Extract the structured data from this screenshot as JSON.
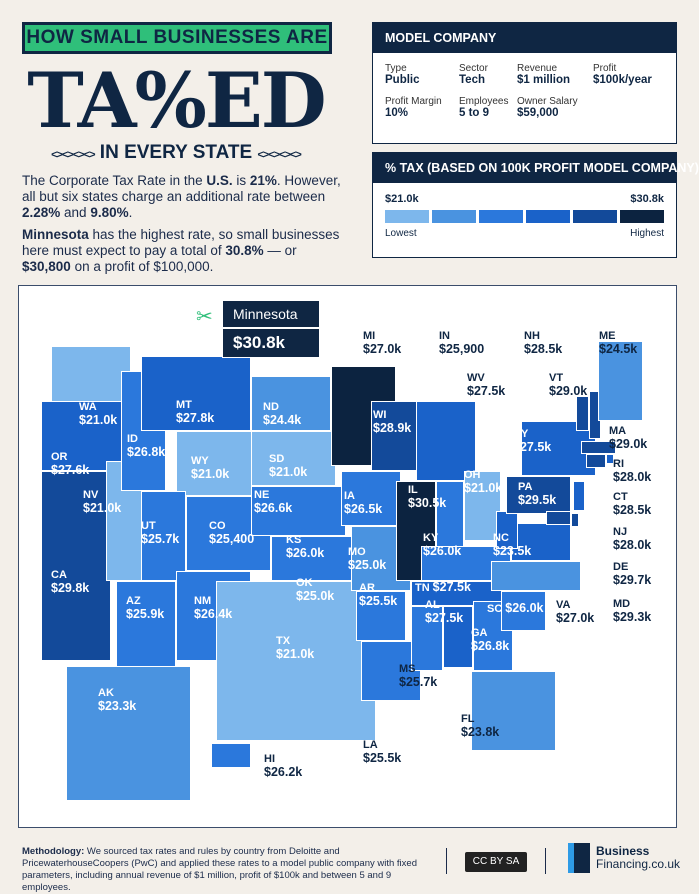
{
  "header": {
    "banner": "HOW SMALL BUSINESSES ARE",
    "title": "TA%ED",
    "subtitle": "IN EVERY STATE",
    "intro1": {
      "a": "The Corporate Tax Rate in the ",
      "b": "U.S.",
      "c": " is ",
      "d": "21%",
      "e": ". However, all but six states charge an additional rate between ",
      "f": "2.28%",
      "g": " and ",
      "h": "9.80%",
      "i": "."
    },
    "intro2": {
      "a": "Minnesota",
      "b": " has the highest rate, so small businesses here must expect to pay a total of ",
      "c": "30.8%",
      "d": " — or ",
      "e": "$30,800",
      "f": " on a profit of $100,000."
    }
  },
  "model": {
    "title": "MODEL COMPANY",
    "fields": [
      {
        "label": "Type",
        "value": "Public"
      },
      {
        "label": "Sector",
        "value": "Tech"
      },
      {
        "label": "Revenue",
        "value": "$1 million"
      },
      {
        "label": "Profit",
        "value": "$100k/year"
      },
      {
        "label": "Profit Margin",
        "value": "10%"
      },
      {
        "label": "Employees",
        "value": "5 to 9"
      },
      {
        "label": "Owner Salary",
        "value": "$59,000"
      }
    ]
  },
  "legend": {
    "title": "% TAX (BASED ON 100K PROFIT MODEL COMPANY)",
    "min": "$21.0k",
    "max": "$30.8k",
    "low": "Lowest",
    "high": "Highest",
    "colors": [
      "#7db7ec",
      "#4a93e0",
      "#2b78dc",
      "#1a62c9",
      "#134a9a",
      "#0c2340"
    ]
  },
  "callout": {
    "state": "Minnesota",
    "value": "$30.8k",
    "icon": "scissors-icon"
  },
  "states": [
    {
      "abbr": "WA",
      "value": "$21.0k",
      "tax": 21.0
    },
    {
      "abbr": "OR",
      "value": "$27.6k",
      "tax": 27.6
    },
    {
      "abbr": "CA",
      "value": "$29.8k",
      "tax": 29.8
    },
    {
      "abbr": "NV",
      "value": "$21.0k",
      "tax": 21.0
    },
    {
      "abbr": "ID",
      "value": "$26.8k",
      "tax": 26.8
    },
    {
      "abbr": "MT",
      "value": "$27.8k",
      "tax": 27.8
    },
    {
      "abbr": "WY",
      "value": "$21.0k",
      "tax": 21.0
    },
    {
      "abbr": "UT",
      "value": "$25.7k",
      "tax": 25.7
    },
    {
      "abbr": "CO",
      "value": "$25,400",
      "tax": 25.4
    },
    {
      "abbr": "AZ",
      "value": "$25.9k",
      "tax": 25.9
    },
    {
      "abbr": "NM",
      "value": "$26.4k",
      "tax": 26.4
    },
    {
      "abbr": "ND",
      "value": "$24.4k",
      "tax": 24.4
    },
    {
      "abbr": "SD",
      "value": "$21.0k",
      "tax": 21.0
    },
    {
      "abbr": "NE",
      "value": "$26.6k",
      "tax": 26.6
    },
    {
      "abbr": "KS",
      "value": "$26.0k",
      "tax": 26.0
    },
    {
      "abbr": "OK",
      "value": "$25.0k",
      "tax": 25.0
    },
    {
      "abbr": "TX",
      "value": "$21.0k",
      "tax": 21.0
    },
    {
      "abbr": "MN",
      "value": "$30.8k",
      "tax": 30.8
    },
    {
      "abbr": "IA",
      "value": "$26.5k",
      "tax": 26.5
    },
    {
      "abbr": "MO",
      "value": "$25.0k",
      "tax": 25.0
    },
    {
      "abbr": "AR",
      "value": "$25.5k",
      "tax": 25.5
    },
    {
      "abbr": "LA",
      "value": "$25.5k",
      "tax": 25.5
    },
    {
      "abbr": "WI",
      "value": "$28.9k",
      "tax": 28.9
    },
    {
      "abbr": "IL",
      "value": "$30.5k",
      "tax": 30.5
    },
    {
      "abbr": "MI",
      "value": "$27.0k",
      "tax": 27.0
    },
    {
      "abbr": "IN",
      "value": "$25,900",
      "tax": 25.9
    },
    {
      "abbr": "OH",
      "value": "$21.0k",
      "tax": 21.0
    },
    {
      "abbr": "KY",
      "value": "$26.0k",
      "tax": 26.0
    },
    {
      "abbr": "TN",
      "value": "$27.5k",
      "tax": 27.5
    },
    {
      "abbr": "MS",
      "value": "$25.7k",
      "tax": 25.7
    },
    {
      "abbr": "AL",
      "value": "$27.5k",
      "tax": 27.5
    },
    {
      "abbr": "GA",
      "value": "$26.8k",
      "tax": 26.8
    },
    {
      "abbr": "FL",
      "value": "$23.8k",
      "tax": 23.8
    },
    {
      "abbr": "SC",
      "value": "$26.0k",
      "tax": 26.0
    },
    {
      "abbr": "NC",
      "value": "$23.5k",
      "tax": 23.5
    },
    {
      "abbr": "VA",
      "value": "$27.0k",
      "tax": 27.0
    },
    {
      "abbr": "WV",
      "value": "$27.5k",
      "tax": 27.5
    },
    {
      "abbr": "PA",
      "value": "$29.5k",
      "tax": 29.5
    },
    {
      "abbr": "NY",
      "value": "$27.5k",
      "tax": 27.5
    },
    {
      "abbr": "VT",
      "value": "$29.0k",
      "tax": 29.0
    },
    {
      "abbr": "NH",
      "value": "$28.5k",
      "tax": 28.5
    },
    {
      "abbr": "ME",
      "value": "$24.5k",
      "tax": 24.5
    },
    {
      "abbr": "MA",
      "value": "$29.0k",
      "tax": 29.0
    },
    {
      "abbr": "RI",
      "value": "$28.0k",
      "tax": 28.0
    },
    {
      "abbr": "CT",
      "value": "$28.5k",
      "tax": 28.5
    },
    {
      "abbr": "NJ",
      "value": "$28.0k",
      "tax": 28.0
    },
    {
      "abbr": "DE",
      "value": "$29.7k",
      "tax": 29.7
    },
    {
      "abbr": "MD",
      "value": "$29.3k",
      "tax": 29.3
    },
    {
      "abbr": "AK",
      "value": "$23.3k",
      "tax": 23.3
    },
    {
      "abbr": "HI",
      "value": "$26.2k",
      "tax": 26.2
    }
  ],
  "footer": {
    "method_label": "Methodology:",
    "method": " We sourced tax rates and rules by country from Deloitte and PricewaterhouseCoopers (PwC) and applied these rates to a model public company with fixed parameters, including annual revenue of $1 million, profit of $100k and between 5 and 9 employees.",
    "license": "CC BY SA",
    "brand1": "Business",
    "brand2": "Financing.co.uk"
  }
}
